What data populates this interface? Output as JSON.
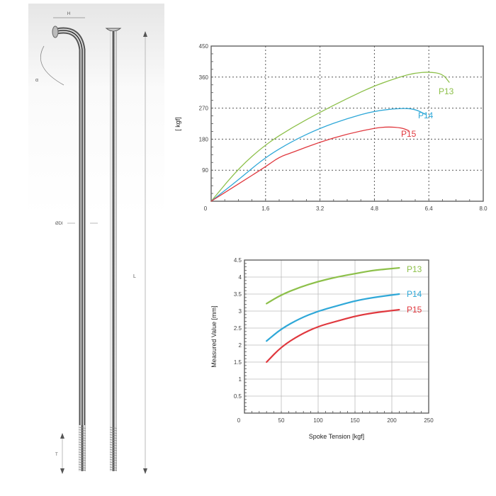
{
  "diagram": {
    "labels": {
      "head_width": "H",
      "angle": "α",
      "diameter": "ØDI",
      "length": "L",
      "thread": "T"
    }
  },
  "colors": {
    "P13": "#8dc04a",
    "P14": "#2fa8d8",
    "P15": "#e0383e"
  },
  "chart_data": [
    {
      "type": "line",
      "title": "",
      "xlabel": "",
      "ylabel": "[ kgf]",
      "xlim": [
        0,
        8.0
      ],
      "ylim": [
        0,
        450
      ],
      "xticks": [
        "0",
        "1.6",
        "3.2",
        "4.8",
        "6.4",
        "8.0"
      ],
      "yticks": [
        "90",
        "180",
        "270",
        "360",
        "450"
      ],
      "grid": "dotted",
      "series": [
        {
          "name": "P13",
          "x": [
            0,
            0.8,
            1.6,
            2.4,
            3.2,
            4.0,
            4.8,
            5.6,
            6.0,
            6.4,
            6.8,
            7.0
          ],
          "y": [
            0,
            95,
            165,
            215,
            258,
            298,
            335,
            362,
            372,
            375,
            370,
            345
          ]
        },
        {
          "name": "P14",
          "x": [
            0,
            0.8,
            1.6,
            2.4,
            3.2,
            4.0,
            4.8,
            5.6,
            6.0,
            6.3
          ],
          "y": [
            0,
            62,
            128,
            175,
            212,
            240,
            262,
            270,
            267,
            252
          ]
        },
        {
          "name": "P15",
          "x": [
            0,
            0.8,
            1.6,
            2.0,
            2.4,
            3.2,
            4.0,
            4.8,
            5.2,
            5.6,
            5.8
          ],
          "y": [
            0,
            50,
            100,
            128,
            142,
            172,
            195,
            212,
            216,
            213,
            205
          ]
        }
      ]
    },
    {
      "type": "line",
      "title": "",
      "xlabel": "Spoke Tension [kgf]",
      "ylabel": "Measured Value [mm]",
      "xlim": [
        0,
        250
      ],
      "ylim": [
        0,
        4.5
      ],
      "xticks": [
        "0",
        "50",
        "100",
        "150",
        "200",
        "250"
      ],
      "yticks": [
        "0.5",
        "1",
        "1.5",
        "2",
        "2.5",
        "3",
        "3.5",
        "4",
        "4.5"
      ],
      "grid": "solid",
      "series": [
        {
          "name": "P13",
          "x": [
            30,
            50,
            75,
            100,
            125,
            150,
            175,
            210
          ],
          "y": [
            3.22,
            3.48,
            3.7,
            3.87,
            4.0,
            4.1,
            4.2,
            4.27
          ]
        },
        {
          "name": "P14",
          "x": [
            30,
            50,
            75,
            100,
            125,
            150,
            175,
            210
          ],
          "y": [
            2.12,
            2.48,
            2.78,
            3.0,
            3.15,
            3.3,
            3.4,
            3.5
          ]
        },
        {
          "name": "P15",
          "x": [
            30,
            50,
            75,
            100,
            125,
            150,
            175,
            210
          ],
          "y": [
            1.5,
            1.95,
            2.3,
            2.55,
            2.7,
            2.85,
            2.95,
            3.04
          ]
        }
      ]
    }
  ]
}
